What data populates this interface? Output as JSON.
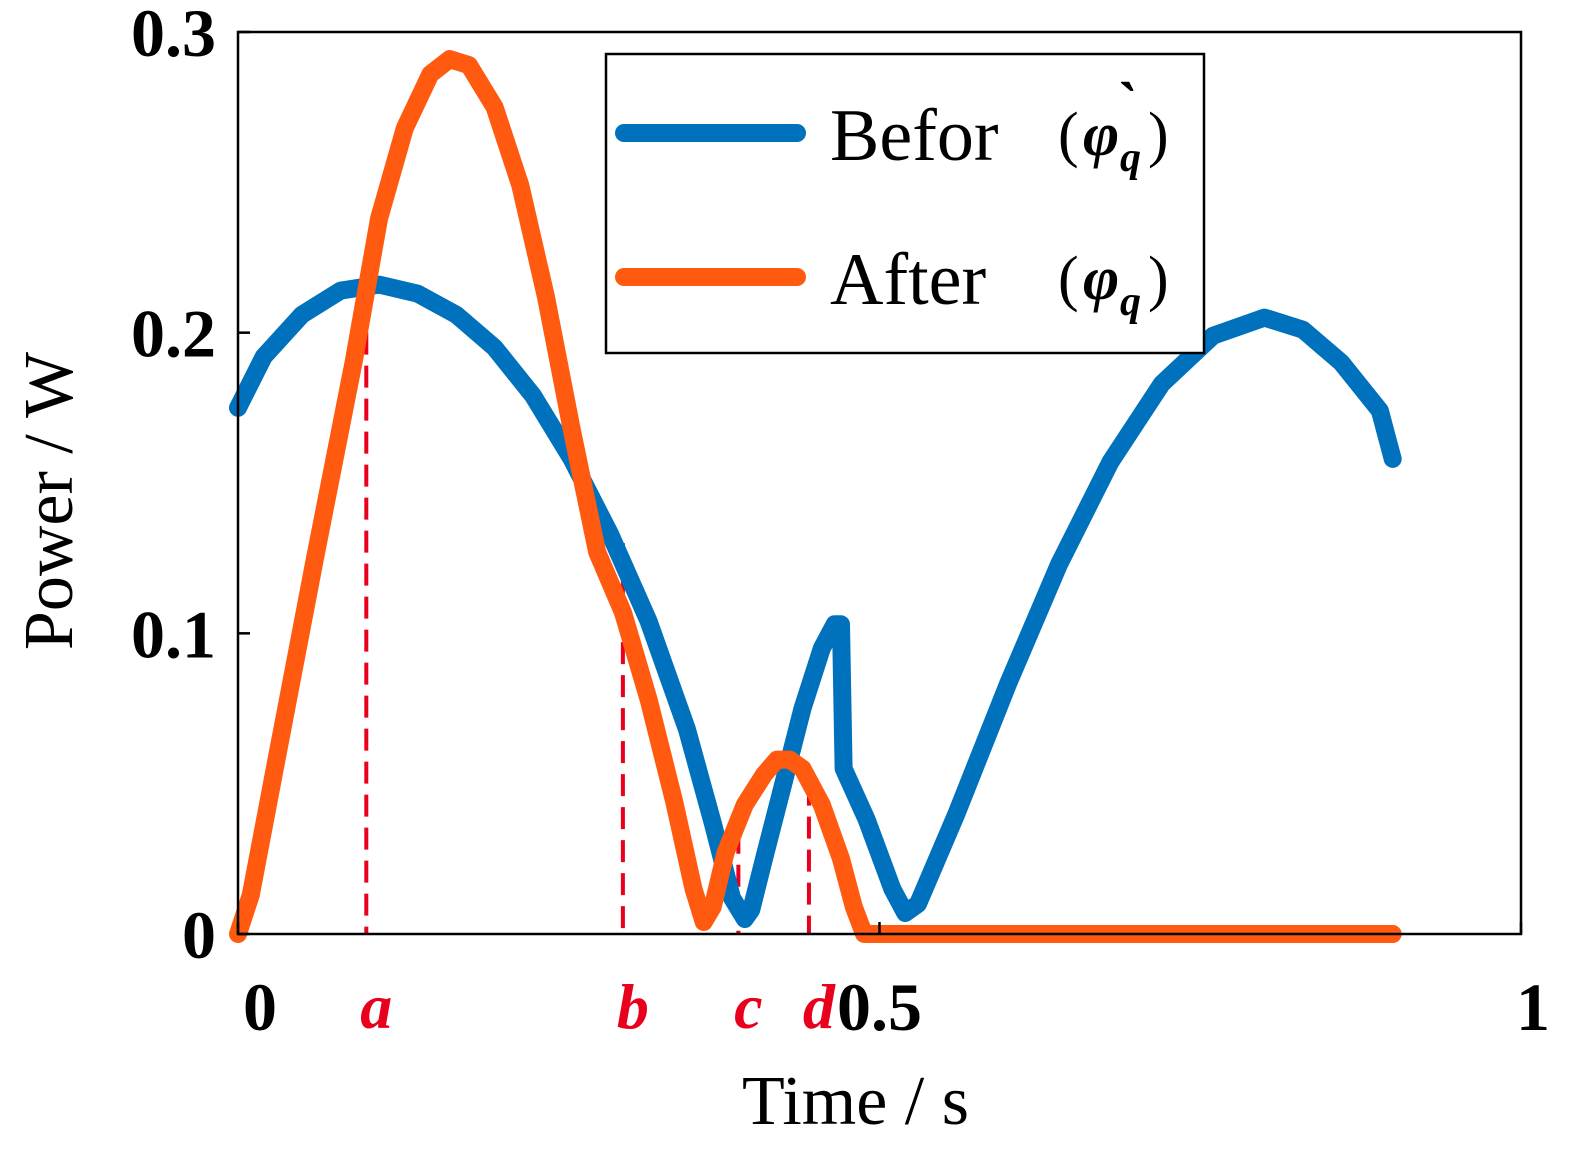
{
  "chart_data": {
    "type": "line",
    "xlabel": "Time / s",
    "ylabel": "Power / W",
    "xlim": [
      0,
      1
    ],
    "ylim": [
      0,
      0.3
    ],
    "x_ticks": [
      {
        "value": 0,
        "label": "0"
      },
      {
        "value": 0.5,
        "label": "0.5"
      },
      {
        "value": 1,
        "label": "1"
      }
    ],
    "y_ticks": [
      {
        "value": 0,
        "label": "0"
      },
      {
        "value": 0.1,
        "label": "0.1"
      },
      {
        "value": 0.2,
        "label": "0.2"
      },
      {
        "value": 0.3,
        "label": "0.3"
      }
    ],
    "markers": [
      {
        "label": "a",
        "x": 0.1,
        "y": 0.2
      },
      {
        "label": "b",
        "x": 0.3,
        "y": 0.13
      },
      {
        "label": "c",
        "x": 0.39,
        "y": 0.034
      },
      {
        "label": "d",
        "x": 0.445,
        "y": 0.05
      }
    ],
    "legend": {
      "position": "top-right",
      "entries": [
        {
          "name": "Befor",
          "symbol": "φ",
          "subscript": "q",
          "accent": "`"
        },
        {
          "name": "After",
          "symbol": "φ",
          "subscript": "q",
          "accent": ""
        }
      ]
    },
    "grid": false,
    "series": [
      {
        "name": "Befor",
        "color": "#0072bd",
        "points": [
          [
            0.0,
            0.175
          ],
          [
            0.02,
            0.192
          ],
          [
            0.05,
            0.206
          ],
          [
            0.08,
            0.214
          ],
          [
            0.11,
            0.216
          ],
          [
            0.14,
            0.213
          ],
          [
            0.17,
            0.206
          ],
          [
            0.2,
            0.195
          ],
          [
            0.23,
            0.179
          ],
          [
            0.26,
            0.158
          ],
          [
            0.29,
            0.133
          ],
          [
            0.32,
            0.104
          ],
          [
            0.35,
            0.068
          ],
          [
            0.37,
            0.037
          ],
          [
            0.385,
            0.012
          ],
          [
            0.395,
            0.005
          ],
          [
            0.4,
            0.008
          ],
          [
            0.41,
            0.025
          ],
          [
            0.425,
            0.05
          ],
          [
            0.44,
            0.075
          ],
          [
            0.455,
            0.095
          ],
          [
            0.465,
            0.103
          ],
          [
            0.47,
            0.103
          ],
          [
            0.472,
            0.055
          ],
          [
            0.49,
            0.038
          ],
          [
            0.51,
            0.015
          ],
          [
            0.52,
            0.007
          ],
          [
            0.53,
            0.01
          ],
          [
            0.56,
            0.04
          ],
          [
            0.6,
            0.083
          ],
          [
            0.64,
            0.123
          ],
          [
            0.68,
            0.157
          ],
          [
            0.72,
            0.183
          ],
          [
            0.76,
            0.199
          ],
          [
            0.8,
            0.205
          ],
          [
            0.83,
            0.201
          ],
          [
            0.86,
            0.19
          ],
          [
            0.89,
            0.174
          ],
          [
            0.9,
            0.158
          ]
        ]
      },
      {
        "name": "After",
        "color": "#ff5a0f",
        "points": [
          [
            0.0,
            0.0
          ],
          [
            0.01,
            0.013
          ],
          [
            0.03,
            0.058
          ],
          [
            0.06,
            0.125
          ],
          [
            0.09,
            0.19
          ],
          [
            0.11,
            0.238
          ],
          [
            0.13,
            0.268
          ],
          [
            0.15,
            0.286
          ],
          [
            0.165,
            0.291
          ],
          [
            0.18,
            0.289
          ],
          [
            0.2,
            0.275
          ],
          [
            0.22,
            0.249
          ],
          [
            0.24,
            0.212
          ],
          [
            0.26,
            0.168
          ],
          [
            0.28,
            0.127
          ],
          [
            0.3,
            0.107
          ],
          [
            0.32,
            0.078
          ],
          [
            0.34,
            0.044
          ],
          [
            0.355,
            0.015
          ],
          [
            0.363,
            0.004
          ],
          [
            0.37,
            0.009
          ],
          [
            0.38,
            0.027
          ],
          [
            0.395,
            0.043
          ],
          [
            0.41,
            0.053
          ],
          [
            0.42,
            0.058
          ],
          [
            0.43,
            0.058
          ],
          [
            0.44,
            0.055
          ],
          [
            0.455,
            0.043
          ],
          [
            0.47,
            0.025
          ],
          [
            0.48,
            0.009
          ],
          [
            0.488,
            0.0
          ],
          [
            0.55,
            0.0
          ],
          [
            0.7,
            0.0
          ],
          [
            0.9,
            0.0
          ]
        ]
      }
    ]
  }
}
